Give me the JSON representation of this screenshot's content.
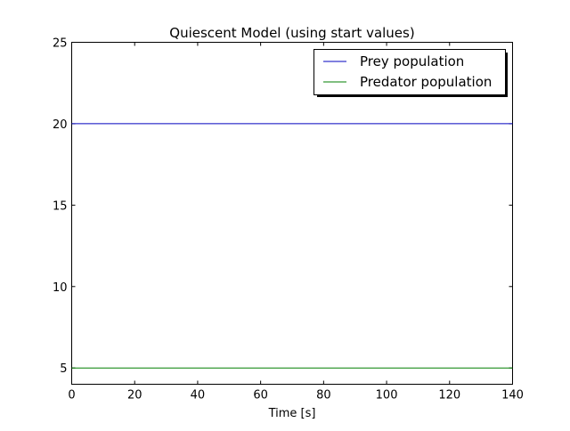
{
  "chart_data": {
    "type": "line",
    "title": "Quiescent Model (using start values)",
    "xlabel": "Time [s]",
    "ylabel": "",
    "xlim": [
      0,
      140
    ],
    "ylim": [
      4,
      25
    ],
    "x_ticks": [
      0,
      20,
      40,
      60,
      80,
      100,
      120,
      140
    ],
    "y_ticks": [
      5,
      10,
      15,
      20,
      25
    ],
    "grid": false,
    "legend_position": "top-right",
    "series": [
      {
        "name": "Prey population",
        "color": "#0000bf",
        "x": [
          0,
          140
        ],
        "y": [
          20,
          20
        ]
      },
      {
        "name": "Predator population",
        "color": "#007f00",
        "x": [
          0,
          140
        ],
        "y": [
          5,
          5
        ]
      }
    ]
  }
}
